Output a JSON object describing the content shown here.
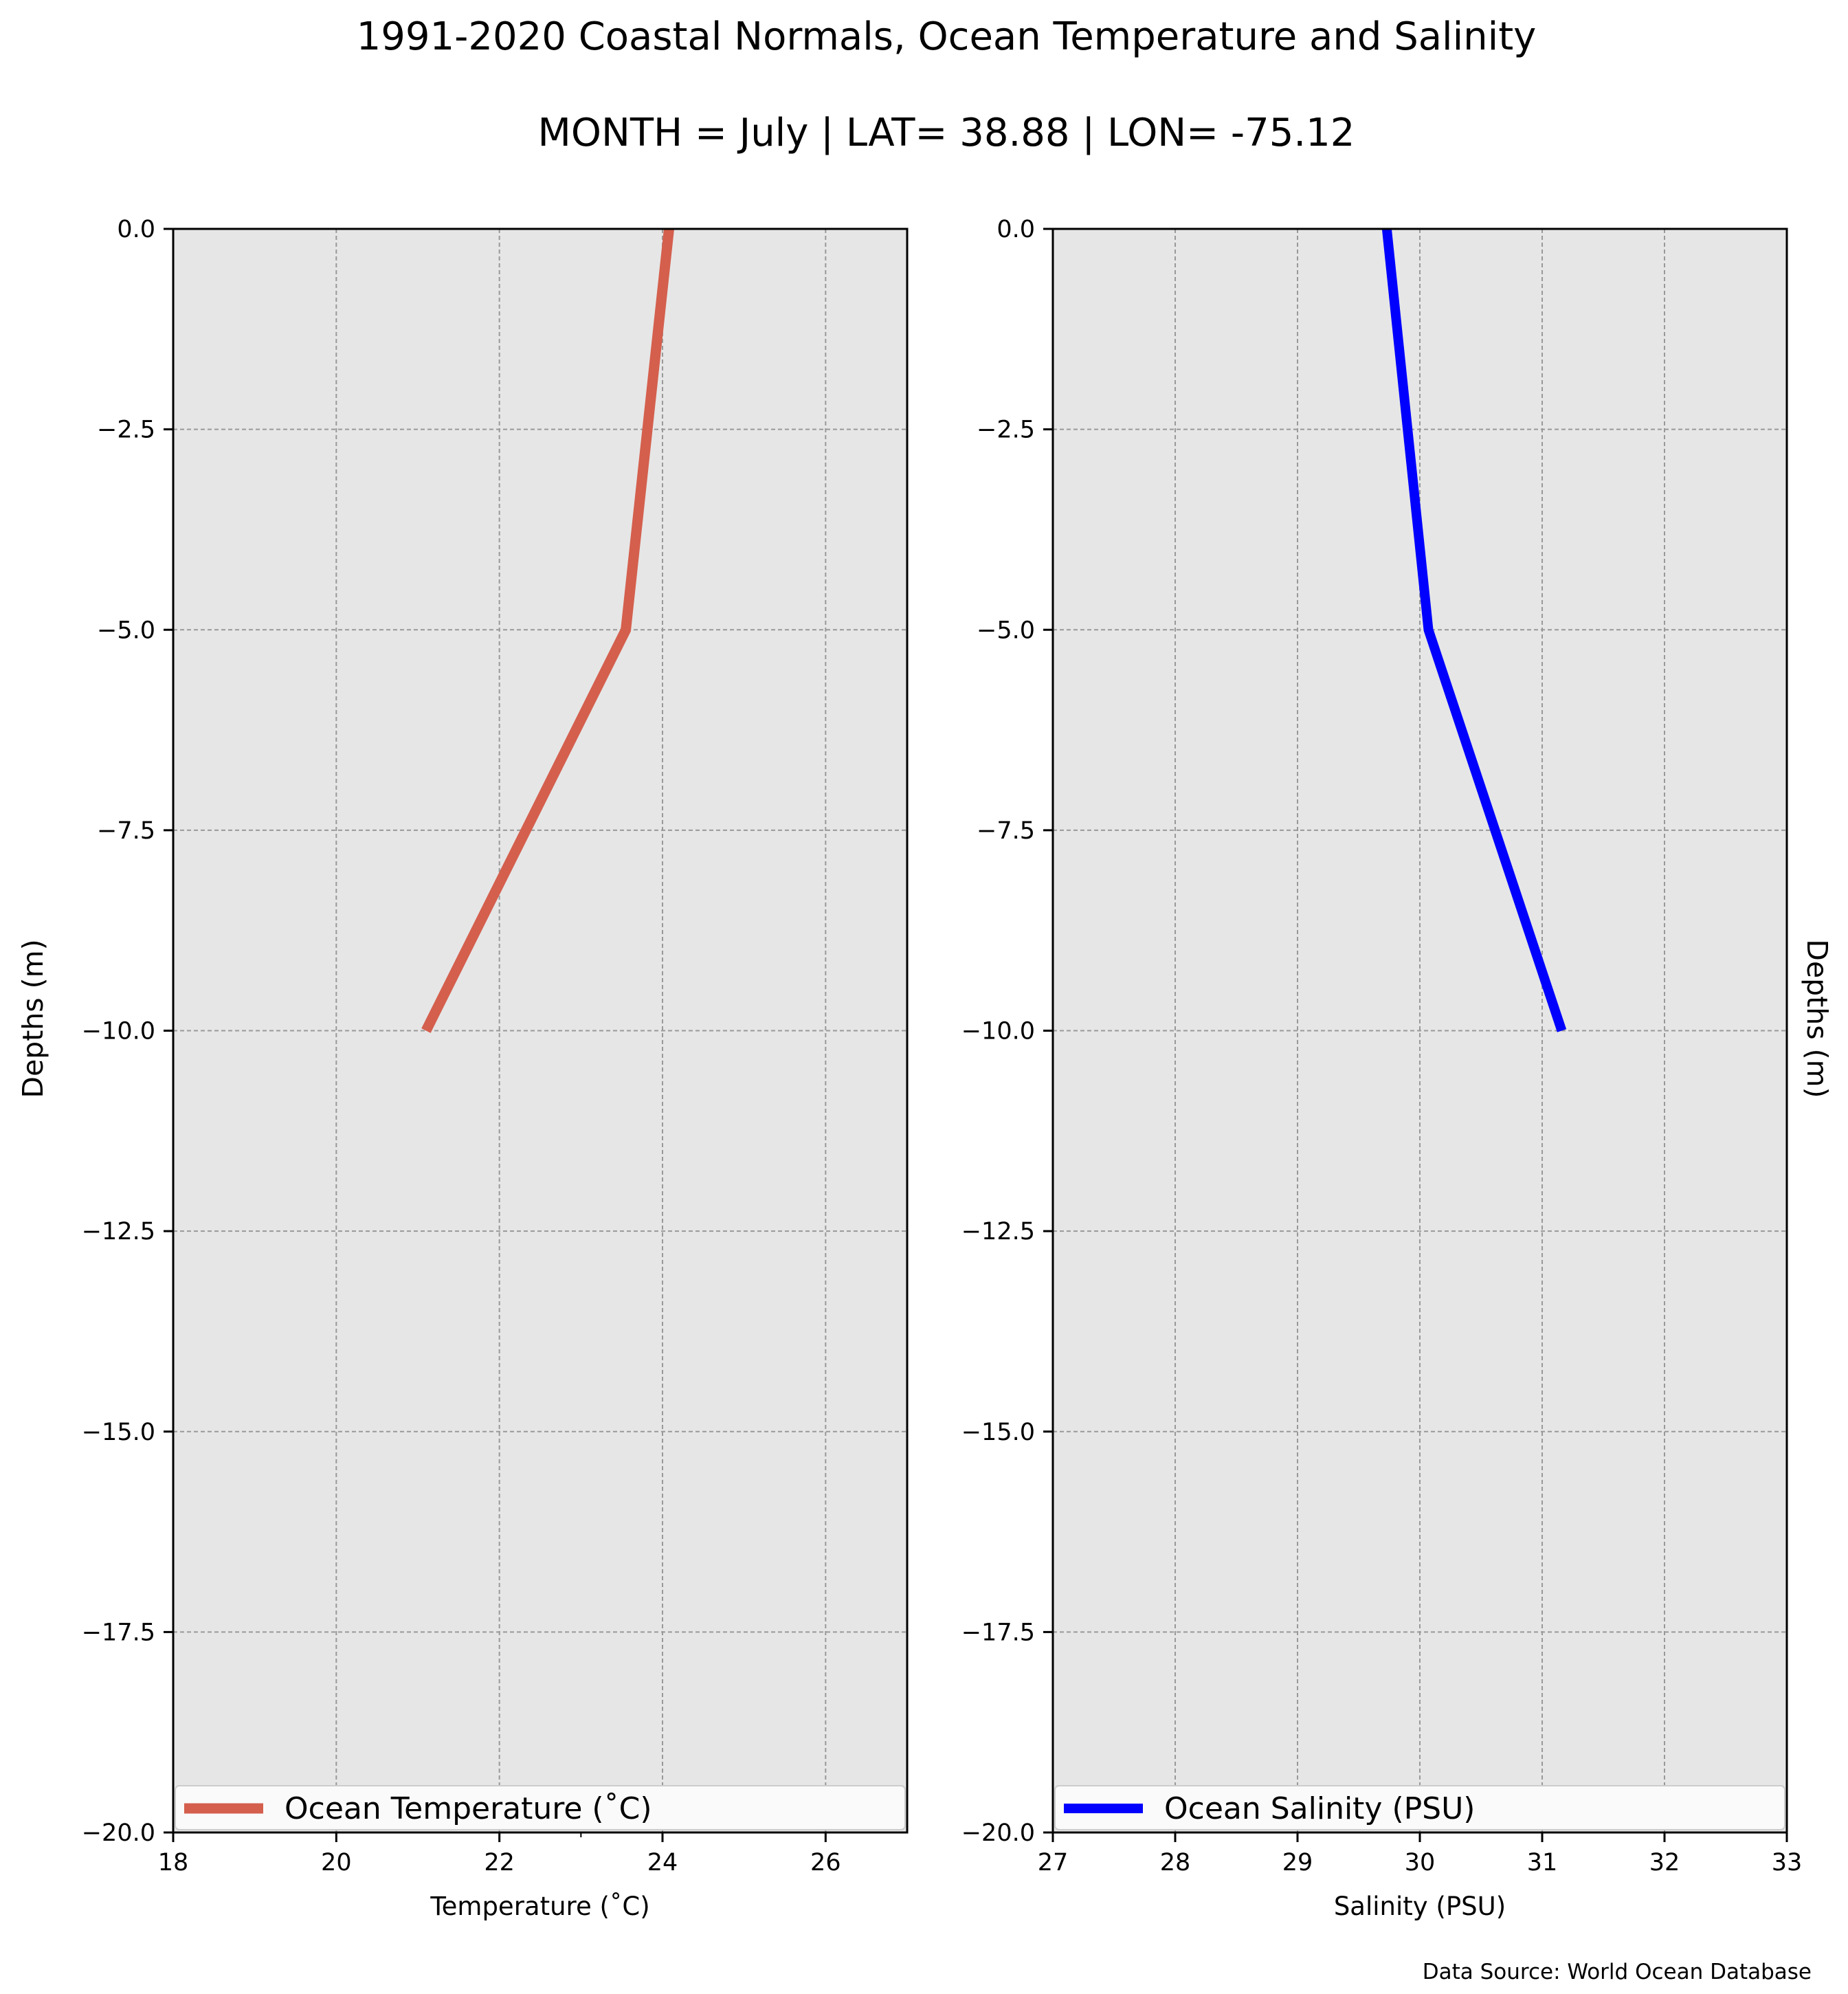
{
  "figure": {
    "title_line1": "1991-2020 Coastal Normals, Ocean Temperature and Salinity",
    "title_line2": "MONTH = July | LAT= 38.88 | LON= -75.12",
    "footer": "Data Source: World Ocean Database"
  },
  "colors": {
    "plot_background": "#e6e6e6",
    "grid": "#999999",
    "temperature_line": "#d45f4d",
    "salinity_line": "#0000ff"
  },
  "chart_data": [
    {
      "type": "line",
      "title": "",
      "xlabel": "Temperature ($^\\circ$C)",
      "xlabel_display": "Temperature (˚C)",
      "ylabel": "Depths (m)",
      "xlim": [
        18,
        27
      ],
      "ylim": [
        -20,
        0
      ],
      "xticks": [
        "18",
        "20",
        "22",
        "24",
        "26"
      ],
      "xtick_values": [
        18,
        20,
        22,
        24,
        26
      ],
      "yticks": [
        "0.0",
        "−2.5",
        "−5.0",
        "−7.5",
        "−10.0",
        "−12.5",
        "−15.0",
        "−17.5",
        "−20.0"
      ],
      "ytick_values": [
        0,
        -2.5,
        -5,
        -7.5,
        -10,
        -12.5,
        -15,
        -17.5,
        -20
      ],
      "grid": true,
      "legend_position": "lower center",
      "series": [
        {
          "name": "Ocean Temperature (˚C)",
          "x": [
            24.08,
            23.55,
            21.1
          ],
          "y": [
            0,
            -5,
            -10
          ]
        }
      ]
    },
    {
      "type": "line",
      "title": "",
      "xlabel": "Salinity (PSU)",
      "ylabel": "Depths (m)",
      "xlim": [
        27,
        33
      ],
      "ylim": [
        -20,
        0
      ],
      "xticks": [
        "27",
        "28",
        "29",
        "30",
        "31",
        "32",
        "33"
      ],
      "xtick_values": [
        27,
        28,
        29,
        30,
        31,
        32,
        33
      ],
      "yticks": [
        "0.0",
        "−2.5",
        "−5.0",
        "−7.5",
        "−10.0",
        "−12.5",
        "−15.0",
        "−17.5",
        "−20.0"
      ],
      "ytick_values": [
        0,
        -2.5,
        -5,
        -7.5,
        -10,
        -12.5,
        -15,
        -17.5,
        -20
      ],
      "grid": true,
      "legend_position": "lower center",
      "series": [
        {
          "name": "Ocean Salinity (PSU)",
          "x": [
            29.73,
            30.07,
            31.16
          ],
          "y": [
            0,
            -5,
            -10
          ]
        }
      ]
    }
  ]
}
